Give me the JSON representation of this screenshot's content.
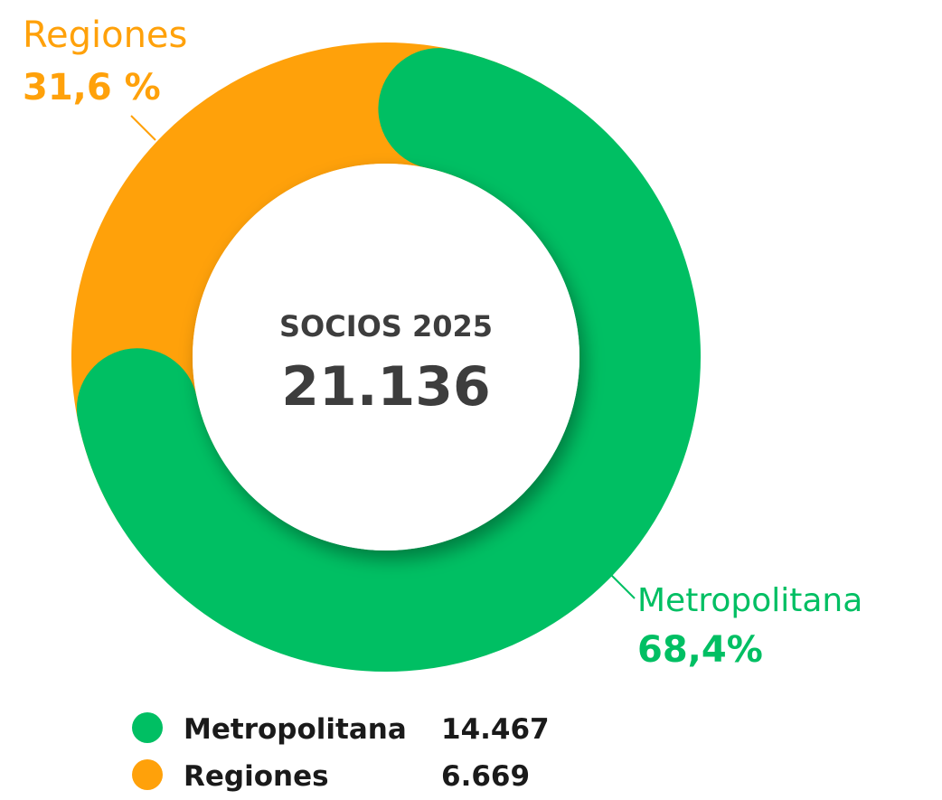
{
  "chart_data": {
    "type": "donut",
    "center_title": "SOCIOS 2025",
    "center_value": "21.136",
    "categories": [
      "Metropolitana",
      "Regiones"
    ],
    "values": [
      68.4,
      31.6
    ],
    "value_labels": [
      "68,4%",
      "31,6 %"
    ],
    "colors": [
      "#00bf63",
      "#ffa10a"
    ],
    "counts": [
      "14.467",
      "6.669"
    ]
  }
}
